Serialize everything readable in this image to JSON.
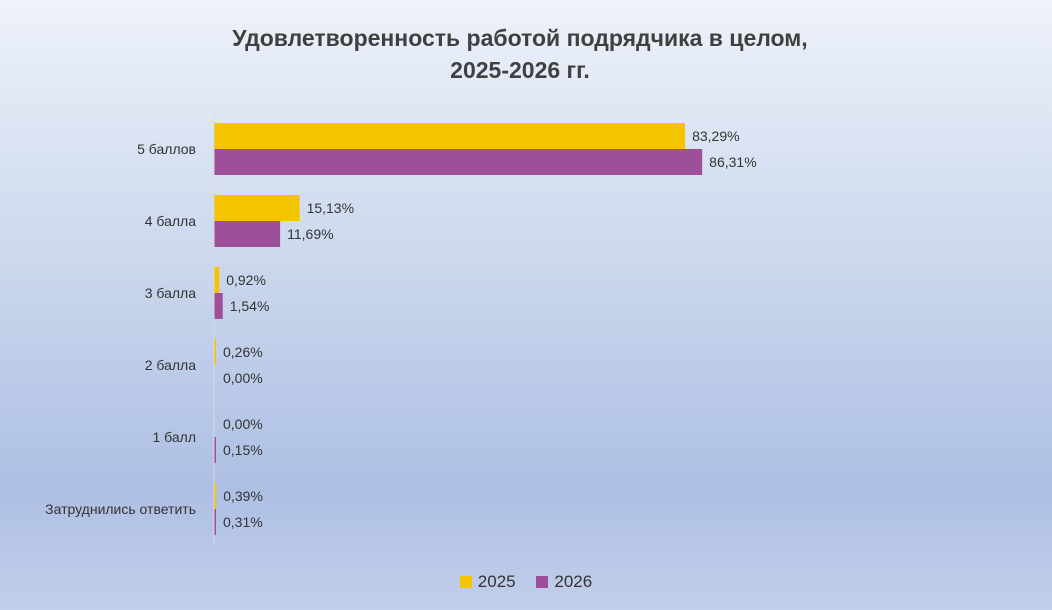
{
  "chart_data": {
    "type": "bar",
    "orientation": "horizontal",
    "title_line1": "Удовлетворенность работой подрядчика в целом,",
    "title_line2": "2025-2026 гг.",
    "categories": [
      "5 баллов",
      "4 балла",
      "3 балла",
      "2 балла",
      "1 балл",
      "Затруднились ответить"
    ],
    "series": [
      {
        "name": "2025",
        "color": "#f5c400",
        "values": [
          83.29,
          15.13,
          0.92,
          0.26,
          0.0,
          0.39
        ],
        "labels": [
          "83,29%",
          "15,13%",
          "0,92%",
          "0,26%",
          "0,00%",
          "0,39%"
        ]
      },
      {
        "name": "2026",
        "color": "#9e4f9a",
        "values": [
          86.31,
          11.69,
          1.54,
          0.0,
          0.15,
          0.31
        ],
        "labels": [
          "86,31%",
          "11,69%",
          "1,54%",
          "0,00%",
          "0,15%",
          "0,31%"
        ]
      }
    ],
    "xlim": [
      0,
      100
    ],
    "grid": false,
    "legend_position": "bottom"
  }
}
